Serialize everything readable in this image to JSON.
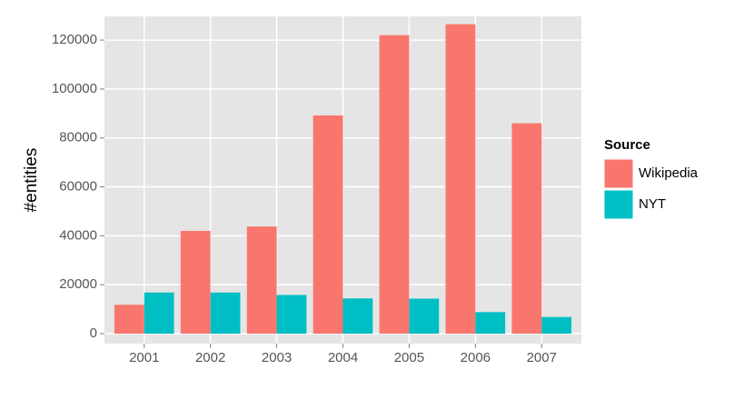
{
  "chart_data": {
    "type": "bar",
    "y_label": "#entities",
    "categories": [
      "2001",
      "2002",
      "2003",
      "2004",
      "2005",
      "2006",
      "2007"
    ],
    "series": [
      {
        "name": "Wikipedia",
        "color": "#f8766d",
        "values": [
          11800,
          42000,
          43800,
          89200,
          122000,
          126500,
          86000
        ]
      },
      {
        "name": "NYT",
        "color": "#00bfc4",
        "values": [
          16800,
          16800,
          15800,
          14400,
          14300,
          8800,
          6800
        ]
      }
    ],
    "legend_title": "Source",
    "legend_position": "right",
    "ylim": [
      -4090,
      129700
    ],
    "yticks": [
      0,
      20000,
      40000,
      60000,
      80000,
      100000,
      120000
    ],
    "grid": true
  }
}
